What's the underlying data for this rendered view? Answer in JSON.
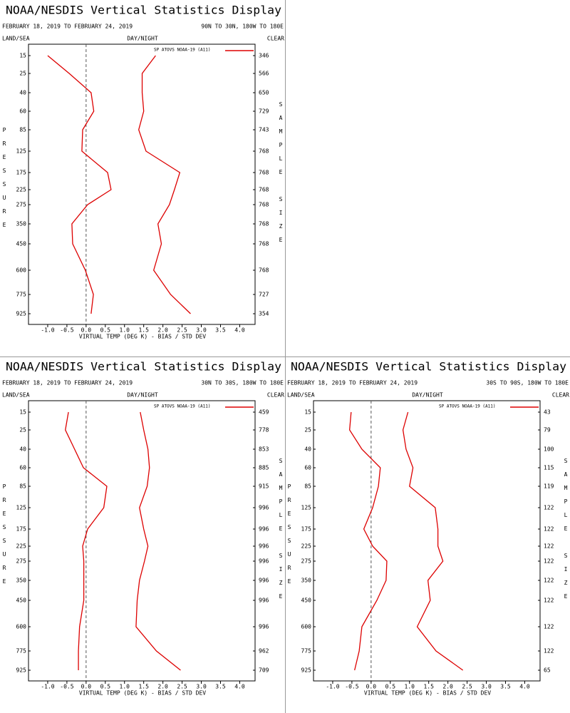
{
  "chart_data": [
    {
      "type": "line",
      "title": "NOAA/NESDIS Vertical Statistics Display",
      "date_range": "FEBRUARY 18, 2019 TO FEBRUARY 24, 2019",
      "region": "90N TO 30N, 180W TO 180E",
      "left_header": "LAND/SEA",
      "center_header": "DAY/NIGHT",
      "right_header": "CLEAR",
      "xlabel": "VIRTUAL TEMP (DEG K) - BIAS / STD DEV",
      "ylabel": "PRESSURE",
      "y2label": "SAMPLE SIZE",
      "categories": [
        15,
        25,
        40,
        60,
        85,
        125,
        175,
        225,
        275,
        350,
        450,
        600,
        775,
        925
      ],
      "series": [
        {
          "name": "SP ATOVS NOAA-19 (A11)",
          "color": "#dd0000",
          "bias": [
            -1.0,
            -0.44,
            0.13,
            0.2,
            -0.09,
            -0.11,
            0.56,
            0.65,
            0.04,
            -0.37,
            -0.35,
            -0.02,
            0.19,
            0.13
          ],
          "std_dev": [
            1.81,
            1.46,
            1.46,
            1.5,
            1.37,
            1.56,
            2.44,
            2.3,
            2.17,
            1.87,
            1.96,
            1.76,
            2.2,
            2.72
          ],
          "sample_size": [
            346,
            566,
            650,
            729,
            743,
            768,
            768,
            768,
            768,
            768,
            768,
            768,
            727,
            354
          ]
        }
      ],
      "xlim": [
        -1.5,
        4.4
      ],
      "xticks": [
        {
          "value": -1,
          "label": "-1.0"
        },
        -0.5,
        {
          "value": 0,
          "label": "0.0"
        },
        0.5,
        {
          "value": 1,
          "label": "1.0"
        },
        1.5,
        {
          "value": 2,
          "label": "2.0"
        },
        2.5,
        {
          "value": 3,
          "label": "3.0"
        },
        3.5,
        {
          "value": 4,
          "label": "4.0"
        }
      ]
    },
    {
      "type": "line",
      "title": "NOAA/NESDIS Vertical Statistics Display",
      "date_range": "FEBRUARY 18, 2019 TO FEBRUARY 24, 2019",
      "region": "30N TO 30S, 180W TO 180E",
      "left_header": "LAND/SEA",
      "center_header": "DAY/NIGHT",
      "right_header": "CLEAR",
      "xlabel": "VIRTUAL TEMP (DEG K) - BIAS / STD DEV",
      "ylabel": "PRESSURE",
      "y2label": "SAMPLE SIZE",
      "categories": [
        15,
        25,
        40,
        60,
        85,
        125,
        175,
        225,
        275,
        350,
        450,
        600,
        775,
        925
      ],
      "series": [
        {
          "name": "SP ATOVS NOAA-19 (A11)",
          "color": "#dd0000",
          "bias": [
            -0.46,
            -0.54,
            -0.3,
            -0.07,
            0.54,
            0.46,
            0.04,
            -0.09,
            -0.06,
            -0.06,
            -0.06,
            -0.17,
            -0.2,
            -0.2
          ],
          "std_dev": [
            1.41,
            1.5,
            1.61,
            1.65,
            1.59,
            1.39,
            1.5,
            1.61,
            1.52,
            1.39,
            1.33,
            1.3,
            1.83,
            2.46
          ],
          "sample_size": [
            459,
            778,
            853,
            885,
            915,
            996,
            996,
            996,
            996,
            996,
            996,
            996,
            962,
            709
          ]
        }
      ],
      "xlim": [
        -1.5,
        4.4
      ],
      "xticks": [
        {
          "value": -1,
          "label": "-1.0"
        },
        -0.5,
        {
          "value": 0,
          "label": "0.0"
        },
        0.5,
        {
          "value": 1,
          "label": "1.0"
        },
        1.5,
        {
          "value": 2,
          "label": "2.0"
        },
        2.5,
        {
          "value": 3,
          "label": "3.0"
        },
        3.5,
        {
          "value": 4,
          "label": "4.0"
        }
      ]
    },
    {
      "type": "line",
      "title": "NOAA/NESDIS Vertical Statistics Display",
      "date_range": "FEBRUARY 18, 2019 TO FEBRUARY 24, 2019",
      "region": "30S TO 90S, 180W TO 180E",
      "left_header": "LAND/SEA",
      "center_header": "DAY/NIGHT",
      "right_header": "CLEAR",
      "xlabel": "VIRTUAL TEMP (DEG K) - BIAS / STD DEV",
      "ylabel": "PRESSURE",
      "y2label": "SAMPLE SIZE",
      "categories": [
        15,
        25,
        40,
        60,
        85,
        125,
        175,
        225,
        275,
        350,
        450,
        600,
        775,
        925
      ],
      "series": [
        {
          "name": "SP ATOVS NOAA-19 (A11)",
          "color": "#dd0000",
          "bias": [
            -0.52,
            -0.56,
            -0.24,
            0.24,
            0.19,
            0.04,
            -0.19,
            0.04,
            0.41,
            0.39,
            0.15,
            -0.24,
            -0.31,
            -0.43
          ],
          "std_dev": [
            0.96,
            0.83,
            0.91,
            1.09,
            1.0,
            1.67,
            1.74,
            1.74,
            1.87,
            1.48,
            1.54,
            1.2,
            1.69,
            2.39
          ],
          "sample_size": [
            43,
            79,
            100,
            115,
            119,
            122,
            122,
            122,
            122,
            122,
            122,
            122,
            122,
            65
          ]
        }
      ],
      "xlim": [
        -1.5,
        4.4
      ],
      "xticks": [
        {
          "value": -1,
          "label": "-1.0"
        },
        -0.5,
        {
          "value": 0,
          "label": "0.0"
        },
        0.5,
        {
          "value": 1,
          "label": "1.0"
        },
        1.5,
        {
          "value": 2,
          "label": "2.0"
        },
        2.5,
        {
          "value": 3,
          "label": "3.0"
        },
        3.5,
        {
          "value": 4,
          "label": "4.0"
        }
      ]
    }
  ]
}
